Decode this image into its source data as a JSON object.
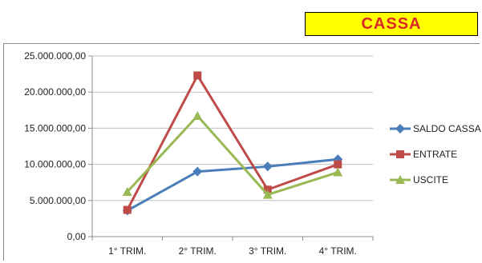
{
  "header": {
    "title": "CASSA"
  },
  "colors": {
    "banner_bg": "#ffff00",
    "banner_text": "#d9252b",
    "grid": "#bfbfbf",
    "axis": "#8c8c8c"
  },
  "chart_data": {
    "type": "line",
    "categories": [
      "1° TRIM.",
      "2° TRIM.",
      "3° TRIM.",
      "4° TRIM."
    ],
    "ylim": [
      0,
      25000000
    ],
    "yticks": [
      0,
      5000000,
      10000000,
      15000000,
      20000000,
      25000000
    ],
    "ytick_labels": [
      "0,00",
      "5.000.000,00",
      "10.000.000,00",
      "15.000.000,00",
      "20.000.000,00",
      "25.000.000,00"
    ],
    "grid": true,
    "legend_position": "right",
    "series": [
      {
        "name": "SALDO CASSA",
        "color": "#4a7ebb",
        "marker": "diamond",
        "values": [
          3600000,
          9000000,
          9700000,
          10700000
        ]
      },
      {
        "name": "ENTRATE",
        "color": "#be4b48",
        "marker": "square",
        "values": [
          3700000,
          22300000,
          6500000,
          10000000
        ]
      },
      {
        "name": "USCITE",
        "color": "#98b954",
        "marker": "triangle",
        "values": [
          6200000,
          16700000,
          5800000,
          8900000
        ]
      }
    ]
  }
}
